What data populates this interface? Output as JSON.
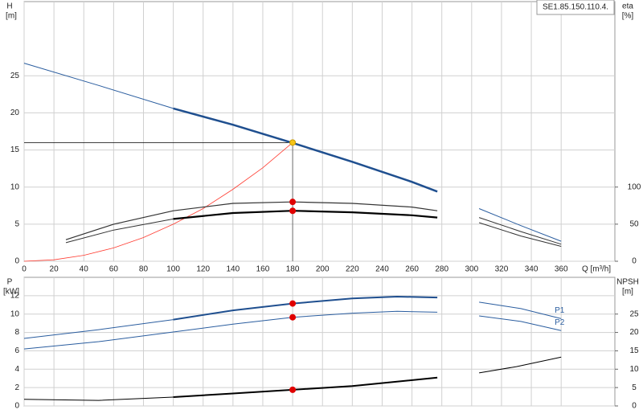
{
  "chart_data": [
    {
      "type": "line",
      "y_label": "H",
      "y_unit": "[m]",
      "y2_label": "eta",
      "y2_unit": "[%]",
      "x_label": "Q [m³/h]",
      "model": "SE1.85.150.110.4.",
      "xlim": [
        0,
        396
      ],
      "xticks": [
        0,
        20,
        40,
        60,
        80,
        100,
        120,
        140,
        160,
        180,
        200,
        220,
        240,
        260,
        280,
        300,
        320,
        340,
        360
      ],
      "ylim": [
        0,
        35
      ],
      "yticks": [
        0,
        5,
        10,
        15,
        20,
        25
      ],
      "y2lim": [
        0,
        350
      ],
      "y2ticks": [
        0,
        50,
        100
      ],
      "grid": true,
      "duty_guides": true,
      "series": [
        {
          "color": "#2a5d9f",
          "width": 1,
          "x": [
            0,
            50,
            100
          ],
          "values": [
            26.7,
            23.7,
            20.6
          ]
        },
        {
          "color": "#1f4f8f",
          "width": 2.5,
          "x": [
            100,
            140,
            180,
            220,
            260,
            277
          ],
          "values": [
            20.6,
            18.4,
            15.95,
            13.4,
            10.7,
            9.4
          ]
        },
        {
          "color": "#ff3b30",
          "width": 0.8,
          "x": [
            0,
            20,
            40,
            60,
            80,
            100,
            120,
            140,
            160,
            180
          ],
          "values": [
            0,
            0.2,
            0.8,
            1.8,
            3.2,
            5.0,
            7.1,
            9.7,
            12.6,
            16.0
          ]
        },
        {
          "color": "#333333",
          "width": 1.2,
          "axis": "y2",
          "x": [
            28,
            60,
            100,
            140,
            180,
            220,
            260,
            277
          ],
          "values": [
            29,
            50,
            68,
            78,
            80,
            78,
            73,
            68
          ]
        },
        {
          "color": "#333333",
          "width": 1,
          "axis": "y2",
          "x": [
            28,
            60,
            100
          ],
          "values": [
            25,
            42,
            57
          ]
        },
        {
          "color": "#000000",
          "width": 2.2,
          "axis": "y2",
          "x": [
            100,
            140,
            180,
            220,
            260,
            277
          ],
          "values": [
            57,
            65,
            68,
            66,
            62,
            59
          ]
        },
        {
          "color": "#2a5d9f",
          "width": 1,
          "axis": "y2",
          "x": [
            305,
            333,
            360
          ],
          "values": [
            71,
            48,
            27
          ]
        },
        {
          "color": "#333333",
          "width": 1,
          "axis": "y2",
          "x": [
            305,
            333,
            360
          ],
          "values": [
            59,
            40,
            23
          ]
        },
        {
          "color": "#333333",
          "width": 1,
          "axis": "y2",
          "x": [
            305,
            333,
            360
          ],
          "values": [
            52,
            34,
            20
          ]
        }
      ],
      "points": [
        {
          "x": 180,
          "y": 16,
          "color": "#f5c518"
        },
        {
          "x": 180,
          "y": 80,
          "axis": "y2",
          "color": "#e00000"
        },
        {
          "x": 180,
          "y": 68,
          "axis": "y2",
          "color": "#e00000"
        }
      ]
    },
    {
      "type": "line",
      "y_label": "P",
      "y_unit": "[kW]",
      "y2_label": "NPSH",
      "y2_unit": "[m]",
      "xlim": [
        0,
        396
      ],
      "xticks": [
        0,
        20,
        40,
        60,
        80,
        100,
        120,
        140,
        160,
        180,
        200,
        220,
        240,
        260,
        280,
        300,
        320,
        340,
        360
      ],
      "ylim": [
        0,
        14
      ],
      "yticks": [
        0,
        2,
        4,
        6,
        8,
        10,
        12
      ],
      "y2lim": [
        0,
        35
      ],
      "y2ticks": [
        0,
        5,
        10,
        15,
        20,
        25
      ],
      "grid": true,
      "series": [
        {
          "color": "#2a5d9f",
          "width": 1,
          "x": [
            0,
            50,
            100
          ],
          "values": [
            7.35,
            8.3,
            9.4
          ]
        },
        {
          "color": "#1f4f8f",
          "width": 2,
          "x": [
            100,
            140,
            180,
            220,
            250,
            277
          ],
          "values": [
            9.4,
            10.4,
            11.15,
            11.7,
            11.9,
            11.8
          ]
        },
        {
          "name": "P1",
          "color": "#2a5d9f",
          "width": 1,
          "x": [
            305,
            333,
            360
          ],
          "values": [
            11.3,
            10.6,
            9.5
          ]
        },
        {
          "color": "#2a5d9f",
          "width": 1,
          "x": [
            0,
            50,
            100,
            140,
            180,
            220,
            250,
            277
          ],
          "values": [
            6.2,
            7.0,
            8.05,
            8.9,
            9.65,
            10.1,
            10.3,
            10.2
          ]
        },
        {
          "name": "P2",
          "color": "#2a5d9f",
          "width": 1,
          "x": [
            305,
            333,
            360
          ],
          "values": [
            9.8,
            9.2,
            8.2
          ]
        },
        {
          "color": "#000000",
          "width": 1,
          "axis": "y2",
          "x": [
            0,
            50,
            100
          ],
          "values": [
            1.8,
            1.5,
            2.4
          ]
        },
        {
          "color": "#000000",
          "width": 2,
          "axis": "y2",
          "x": [
            100,
            140,
            180,
            220,
            277
          ],
          "values": [
            2.4,
            3.4,
            4.4,
            5.4,
            7.7
          ]
        },
        {
          "color": "#000000",
          "width": 1,
          "axis": "y2",
          "x": [
            305,
            330,
            360
          ],
          "values": [
            9.0,
            10.7,
            13.3
          ]
        }
      ],
      "points": [
        {
          "x": 180,
          "y": 11.15,
          "color": "#e00000"
        },
        {
          "x": 180,
          "y": 9.65,
          "color": "#e00000"
        },
        {
          "x": 180,
          "y": 4.4,
          "axis": "y2",
          "color": "#e00000"
        }
      ]
    }
  ]
}
